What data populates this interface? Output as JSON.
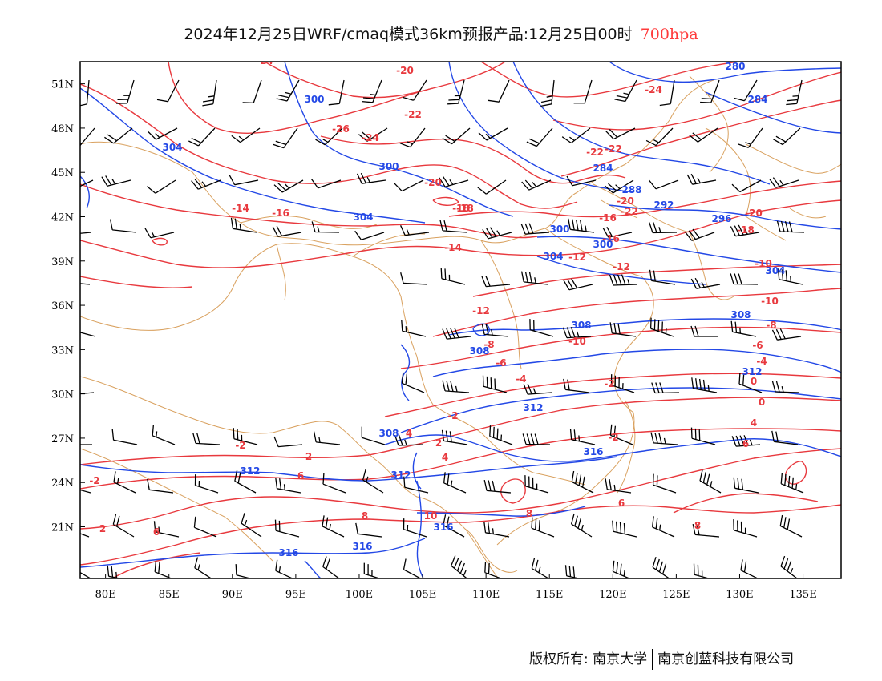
{
  "title": {
    "text": "2024年12月25日WRF/cmaq模式36km预报产品:12月25日00时",
    "level": "700hpa"
  },
  "map": {
    "lon_range": [
      78,
      138
    ],
    "lat_range": [
      17.5,
      52.5
    ],
    "lon_ticks": [
      "80E",
      "85E",
      "90E",
      "95E",
      "100E",
      "105E",
      "110E",
      "115E",
      "120E",
      "125E",
      "130E",
      "135E"
    ],
    "lat_ticks": [
      "21N",
      "24N",
      "27N",
      "30N",
      "33N",
      "36N",
      "39N",
      "42N",
      "45N",
      "48N",
      "51N"
    ],
    "colors": {
      "temperature": "#e8393e",
      "geopotential": "#2348e6",
      "border": "#d9a15f",
      "wind": "#000000"
    },
    "temperature_labels": [
      "-24",
      "-20",
      "-22",
      "-26",
      "-24",
      "-22",
      "-18",
      "-14",
      "-16",
      "-20",
      "-18",
      "-20",
      "-22",
      "-22",
      "-24",
      "-16",
      "-20",
      "-18",
      "-16",
      "-14",
      "-12",
      "-12",
      "-12",
      "-10",
      "-10",
      "-10",
      "-8",
      "-8",
      "-6",
      "-6",
      "-4",
      "-4",
      "-2",
      "-2",
      "0",
      "-2",
      "-2",
      "0",
      "2",
      "2",
      "4",
      "4",
      "6",
      "6",
      "6",
      "8",
      "8",
      "8",
      "10",
      "-2",
      "2",
      "4",
      "6"
    ],
    "geopotential_labels": [
      "300",
      "304",
      "300",
      "304",
      "284",
      "288",
      "292",
      "296",
      "300",
      "304",
      "280",
      "284",
      "308",
      "308",
      "312",
      "312",
      "308",
      "312",
      "316",
      "312",
      "316",
      "316",
      "316",
      "300",
      "304",
      "308"
    ]
  },
  "footer": {
    "copyright": "版权所有: 南京大学",
    "company": "南京创蓝科技有限公司"
  }
}
